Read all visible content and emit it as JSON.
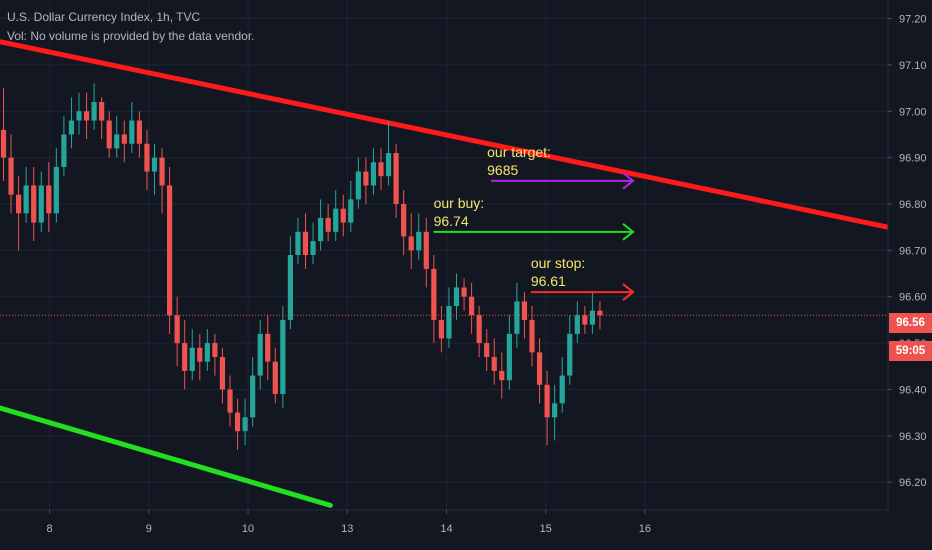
{
  "header": {
    "title": "U.S. Dollar Currency Index, 1h, TVC",
    "volume_note": "Vol: No volume is provided by the data vendor."
  },
  "price_tag": {
    "value": "96.56",
    "countdown": "59:05",
    "color": "#ef5350"
  },
  "colors": {
    "background": "#131722",
    "grid": "#1e2433",
    "up_candle": "#26a69a",
    "down_candle": "#ef5350",
    "axis_text": "#b2b5be",
    "resistance_line": "#ff1a1a",
    "support_line": "#22e01f",
    "annotation_text": "#f5e66a"
  },
  "chart_data": {
    "type": "candlestick",
    "y_axis": {
      "range": [
        96.14,
        97.24
      ],
      "ticks": [
        "97.20",
        "97.10",
        "97.00",
        "96.90",
        "96.80",
        "96.70",
        "96.60",
        "96.50",
        "96.40",
        "96.30",
        "96.20"
      ]
    },
    "x_axis": {
      "range": [
        7.5,
        16.45
      ],
      "ticks": [
        {
          "x": 8,
          "label": "8"
        },
        {
          "x": 9,
          "label": "9"
        },
        {
          "x": 10,
          "label": "10"
        },
        {
          "x": 11,
          "label": "13"
        },
        {
          "x": 12,
          "label": "14"
        },
        {
          "x": 13,
          "label": "15"
        },
        {
          "x": 14,
          "label": "16"
        }
      ]
    },
    "candles": [
      [
        96.96,
        96.9,
        97.05,
        96.85
      ],
      [
        96.9,
        96.82,
        96.95,
        96.78
      ],
      [
        96.82,
        96.78,
        96.86,
        96.7
      ],
      [
        96.78,
        96.84,
        96.88,
        96.76
      ],
      [
        96.84,
        96.76,
        96.88,
        96.72
      ],
      [
        96.76,
        96.84,
        96.87,
        96.74
      ],
      [
        96.84,
        96.78,
        96.89,
        96.74
      ],
      [
        96.78,
        96.88,
        96.92,
        96.76
      ],
      [
        96.88,
        96.95,
        96.99,
        96.86
      ],
      [
        96.95,
        96.98,
        97.03,
        96.92
      ],
      [
        96.98,
        97.0,
        97.04,
        96.95
      ],
      [
        97.0,
        96.98,
        97.04,
        96.94
      ],
      [
        96.98,
        97.02,
        97.06,
        96.96
      ],
      [
        97.02,
        96.98,
        97.03,
        96.94
      ],
      [
        96.98,
        96.92,
        97.0,
        96.9
      ],
      [
        96.92,
        96.95,
        96.99,
        96.9
      ],
      [
        96.95,
        96.93,
        96.98,
        96.89
      ],
      [
        96.93,
        96.98,
        97.02,
        96.91
      ],
      [
        96.98,
        96.93,
        97.0,
        96.9
      ],
      [
        96.93,
        96.87,
        96.96,
        96.83
      ],
      [
        96.87,
        96.9,
        96.93,
        96.82
      ],
      [
        96.9,
        96.84,
        96.92,
        96.78
      ],
      [
        96.84,
        96.56,
        96.88,
        96.52
      ],
      [
        96.56,
        96.5,
        96.6,
        96.45
      ],
      [
        96.5,
        96.44,
        96.55,
        96.4
      ],
      [
        96.44,
        96.49,
        96.53,
        96.42
      ],
      [
        96.49,
        96.46,
        96.52,
        96.42
      ],
      [
        96.46,
        96.5,
        96.53,
        96.44
      ],
      [
        96.5,
        96.47,
        96.52,
        96.43
      ],
      [
        96.47,
        96.4,
        96.49,
        96.37
      ],
      [
        96.4,
        96.35,
        96.43,
        96.32
      ],
      [
        96.35,
        96.31,
        96.38,
        96.27
      ],
      [
        96.31,
        96.34,
        96.38,
        96.28
      ],
      [
        96.34,
        96.43,
        96.47,
        96.32
      ],
      [
        96.43,
        96.52,
        96.55,
        96.4
      ],
      [
        96.52,
        96.46,
        96.56,
        96.42
      ],
      [
        96.46,
        96.39,
        96.49,
        96.37
      ],
      [
        96.39,
        96.55,
        96.58,
        96.36
      ],
      [
        96.55,
        96.69,
        96.73,
        96.53
      ],
      [
        96.69,
        96.74,
        96.77,
        96.67
      ],
      [
        96.74,
        96.69,
        96.78,
        96.66
      ],
      [
        96.69,
        96.72,
        96.76,
        96.67
      ],
      [
        96.72,
        96.77,
        96.81,
        96.7
      ],
      [
        96.77,
        96.74,
        96.8,
        96.72
      ],
      [
        96.74,
        96.79,
        96.83,
        96.72
      ],
      [
        96.79,
        96.76,
        96.82,
        96.73
      ],
      [
        96.76,
        96.81,
        96.85,
        96.74
      ],
      [
        96.81,
        96.87,
        96.9,
        96.79
      ],
      [
        96.87,
        96.84,
        96.9,
        96.8
      ],
      [
        96.84,
        96.89,
        96.92,
        96.82
      ],
      [
        96.89,
        96.86,
        96.92,
        96.83
      ],
      [
        96.86,
        96.91,
        96.98,
        96.84
      ],
      [
        96.91,
        96.8,
        96.93,
        96.77
      ],
      [
        96.8,
        96.73,
        96.83,
        96.69
      ],
      [
        96.73,
        96.7,
        96.78,
        96.66
      ],
      [
        96.7,
        96.74,
        96.78,
        96.68
      ],
      [
        96.74,
        96.66,
        96.77,
        96.62
      ],
      [
        96.66,
        96.55,
        96.69,
        96.5
      ],
      [
        96.55,
        96.51,
        96.58,
        96.48
      ],
      [
        96.51,
        96.58,
        96.62,
        96.49
      ],
      [
        96.58,
        96.62,
        96.65,
        96.55
      ],
      [
        96.62,
        96.6,
        96.64,
        96.57
      ],
      [
        96.6,
        96.56,
        96.63,
        96.52
      ],
      [
        96.56,
        96.5,
        96.58,
        96.47
      ],
      [
        96.5,
        96.47,
        96.53,
        96.44
      ],
      [
        96.47,
        96.44,
        96.51,
        96.41
      ],
      [
        96.44,
        96.42,
        96.48,
        96.38
      ],
      [
        96.42,
        96.52,
        96.56,
        96.4
      ],
      [
        96.52,
        96.59,
        96.63,
        96.49
      ],
      [
        96.59,
        96.55,
        96.61,
        96.51
      ],
      [
        96.55,
        96.48,
        96.58,
        96.45
      ],
      [
        96.48,
        96.41,
        96.51,
        96.37
      ],
      [
        96.41,
        96.34,
        96.44,
        96.28
      ],
      [
        96.34,
        96.37,
        96.41,
        96.29
      ],
      [
        96.37,
        96.43,
        96.47,
        96.35
      ],
      [
        96.43,
        96.52,
        96.56,
        96.41
      ],
      [
        96.52,
        96.56,
        96.59,
        96.5
      ],
      [
        96.56,
        96.54,
        96.58,
        96.52
      ],
      [
        96.54,
        96.57,
        96.61,
        96.52
      ],
      [
        96.57,
        96.56,
        96.59,
        96.53
      ]
    ],
    "current_price": 96.56,
    "trendlines": [
      {
        "name": "resistance",
        "from": [
          7.5,
          97.15
        ],
        "to": [
          16.45,
          96.75
        ]
      },
      {
        "name": "support",
        "from": [
          7.5,
          96.36
        ],
        "to": [
          10.83,
          96.15
        ]
      }
    ],
    "annotations": [
      {
        "label": "our target:",
        "value": "9685",
        "price": 96.85,
        "arrow_from": 12.45,
        "arrow_to": 13.88,
        "arrow_color": "#b022e6"
      },
      {
        "label": "our buy:",
        "value": "96.74",
        "price": 96.74,
        "arrow_from": 11.87,
        "arrow_to": 13.88,
        "arrow_color": "#22e01f"
      },
      {
        "label": "our stop:",
        "value": "96.61",
        "price": 96.61,
        "arrow_from": 12.85,
        "arrow_to": 13.88,
        "arrow_color": "#ff2a2a"
      }
    ]
  }
}
